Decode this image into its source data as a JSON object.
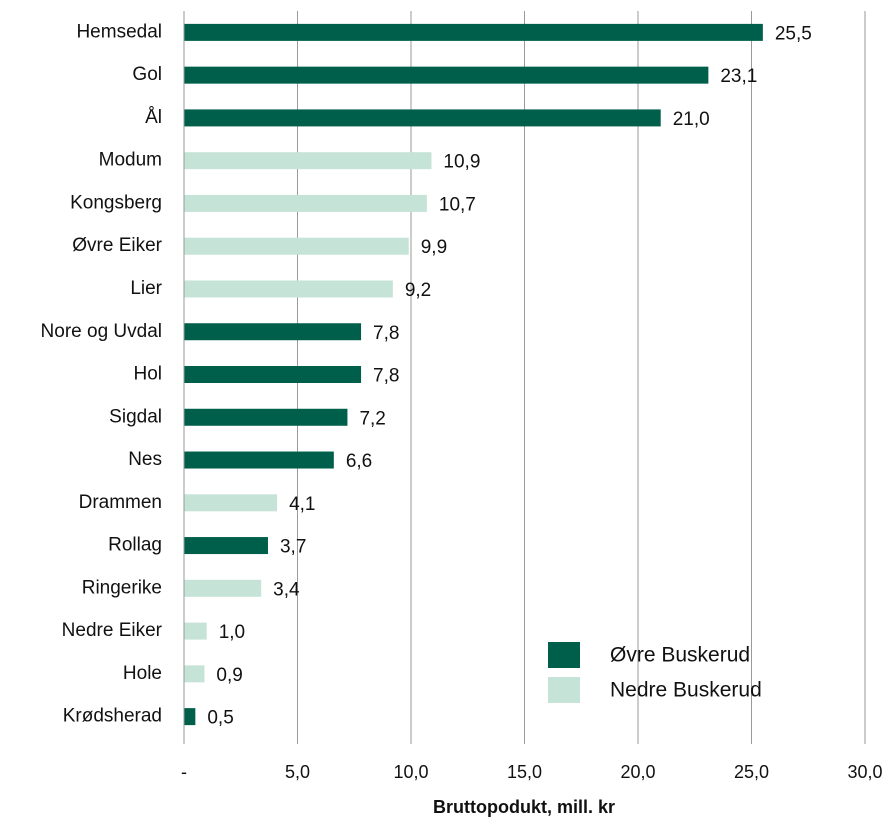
{
  "chart_data": {
    "type": "bar",
    "orientation": "horizontal",
    "x_label": "Bruttopodukt, mill. kr",
    "categories": [
      "Hemsedal",
      "Gol",
      "Ål",
      "Modum",
      "Kongsberg",
      "Øvre Eiker",
      "Lier",
      "Nore og Uvdal",
      "Hol",
      "Sigdal",
      "Nes",
      "Drammen",
      "Rollag",
      "Ringerike",
      "Nedre Eiker",
      "Hole",
      "Krødsherad"
    ],
    "series": [
      {
        "name": "Øvre Buskerud",
        "color": "#005f4b",
        "values": [
          25.5,
          23.1,
          21.0,
          null,
          null,
          null,
          null,
          7.8,
          7.8,
          7.2,
          6.6,
          null,
          3.7,
          null,
          null,
          null,
          0.5
        ],
        "value_labels": [
          "25,5",
          "23,1",
          "21,0",
          null,
          null,
          null,
          null,
          "7,8",
          "7,8",
          "7,2",
          "6,6",
          null,
          "3,7",
          null,
          null,
          null,
          "0,5"
        ]
      },
      {
        "name": "Nedre Buskerud",
        "color": "#c6e3d7",
        "values": [
          null,
          null,
          null,
          10.9,
          10.7,
          9.9,
          9.2,
          null,
          null,
          null,
          null,
          4.1,
          null,
          3.4,
          1.0,
          0.9,
          null
        ],
        "value_labels": [
          null,
          null,
          null,
          "10,9",
          "10,7",
          "9,9",
          "9,2",
          null,
          null,
          null,
          null,
          "4,1",
          null,
          "3,4",
          "1,0",
          "0,9",
          null
        ]
      }
    ],
    "xlim": [
      0,
      30
    ],
    "xticks": [
      {
        "value": 0,
        "label": "-"
      },
      {
        "value": 5,
        "label": "5,0"
      },
      {
        "value": 10,
        "label": "10,0"
      },
      {
        "value": 15,
        "label": "15,0"
      },
      {
        "value": 20,
        "label": "20,0"
      },
      {
        "value": 25,
        "label": "25,0"
      },
      {
        "value": 30,
        "label": "30,0"
      }
    ],
    "grid": true,
    "legend": "lower right"
  }
}
